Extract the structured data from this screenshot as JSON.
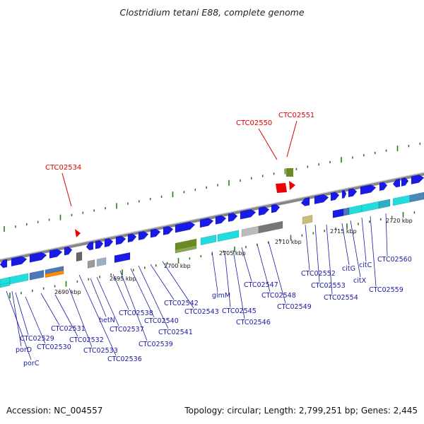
{
  "title": "Clostridium tetani E88, complete genome",
  "footer": {
    "accession": "Accession: NC_004557",
    "summary": "Topology: circular; Length: 2,799,251 bp; Genes: 2,445"
  },
  "colors": {
    "gene_forward": "#1a1ae6",
    "gene_label": "#1a1aa0",
    "highlight_label": "#dd0000",
    "tick": "#2a7a1a",
    "backbone": "#888888",
    "cyan": "#22dddd",
    "olive": "#6b8a22",
    "gray": "#9a9a9a",
    "orange": "#ff8c00",
    "khaki": "#c8be78"
  },
  "scale_labels": [
    "2690 kbp",
    "2695 kbp",
    "2700 kbp",
    "2705 kbp",
    "2710 kbp",
    "2715 kbp",
    "2720 kbp"
  ],
  "highlight_labels": [
    "CTC02534",
    "CTC02550",
    "CTC02551"
  ],
  "gene_labels": [
    "CTC02529",
    "porD",
    "porC",
    "CTC02530",
    "CTC02531",
    "CTC02532",
    "CTC02533",
    "CTC02536",
    "hetN",
    "CTC02537",
    "CTC02538",
    "CTC02539",
    "CTC02540",
    "CTC02541",
    "CTC02542",
    "CTC02543",
    "glmM",
    "CTC02545",
    "CTC02546",
    "CTC02547",
    "CTC02548",
    "CTC02549",
    "CTC02552",
    "CTC02553",
    "CTC02554",
    "citG",
    "citX",
    "citC",
    "CTC02559",
    "CTC02560"
  ]
}
